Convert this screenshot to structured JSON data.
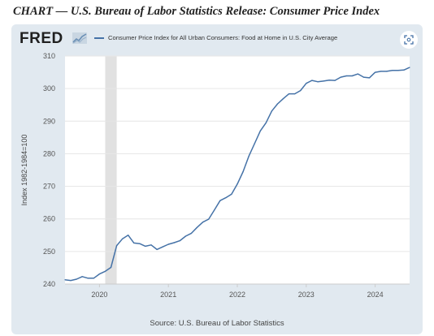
{
  "page": {
    "header": "CHART — U.S. Bureau of Labor Statistics Release: Consumer Price Index"
  },
  "brand": {
    "logo_text": "FRED",
    "accent_color": "#4572a7"
  },
  "source_note": "Source: U.S. Bureau of Labor Statistics",
  "icons": {
    "expand": "expand-icon",
    "logo_mark": "fred-graph-icon"
  },
  "chart_data": {
    "type": "line",
    "title": "",
    "xlabel": "",
    "ylabel": "Index 1982-1984=100",
    "ylim": [
      240,
      310
    ],
    "xlim": [
      "2019-07",
      "2024-07"
    ],
    "y_ticks": [
      240,
      250,
      260,
      270,
      280,
      290,
      300,
      310
    ],
    "x_ticks": [
      "2020",
      "2021",
      "2022",
      "2023",
      "2024"
    ],
    "grid": true,
    "legend_position": "top-left",
    "recession_shading": [
      [
        "2020-02",
        "2020-04"
      ]
    ],
    "series": [
      {
        "name": "Consumer Price Index for All Urban Consumers: Food at Home in U.S. City Average",
        "color": "#4572a7",
        "x": [
          "2019-07",
          "2019-08",
          "2019-09",
          "2019-10",
          "2019-11",
          "2019-12",
          "2020-01",
          "2020-02",
          "2020-03",
          "2020-04",
          "2020-05",
          "2020-06",
          "2020-07",
          "2020-08",
          "2020-09",
          "2020-10",
          "2020-11",
          "2020-12",
          "2021-01",
          "2021-02",
          "2021-03",
          "2021-04",
          "2021-05",
          "2021-06",
          "2021-07",
          "2021-08",
          "2021-09",
          "2021-10",
          "2021-11",
          "2021-12",
          "2022-01",
          "2022-02",
          "2022-03",
          "2022-04",
          "2022-05",
          "2022-06",
          "2022-07",
          "2022-08",
          "2022-09",
          "2022-10",
          "2022-11",
          "2022-12",
          "2023-01",
          "2023-02",
          "2023-03",
          "2023-04",
          "2023-05",
          "2023-06",
          "2023-07",
          "2023-08",
          "2023-09",
          "2023-10",
          "2023-11",
          "2023-12",
          "2024-01",
          "2024-02",
          "2024-03",
          "2024-04",
          "2024-05",
          "2024-06",
          "2024-07"
        ],
        "values": [
          241.3,
          241.1,
          241.5,
          242.3,
          241.8,
          241.8,
          243.1,
          243.9,
          245.1,
          251.8,
          253.9,
          255.0,
          252.6,
          252.4,
          251.6,
          252.0,
          250.6,
          251.4,
          252.2,
          252.7,
          253.3,
          254.7,
          255.6,
          257.4,
          259.0,
          259.9,
          262.7,
          265.6,
          266.5,
          267.6,
          270.7,
          274.5,
          279.2,
          283.1,
          287.0,
          289.5,
          293.1,
          295.3,
          296.9,
          298.4,
          298.4,
          299.4,
          301.6,
          302.5,
          302.1,
          302.3,
          302.6,
          302.5,
          303.5,
          303.9,
          303.9,
          304.5,
          303.5,
          303.3,
          305.0,
          305.3,
          305.3,
          305.6,
          305.6,
          305.7,
          306.5
        ]
      }
    ]
  }
}
